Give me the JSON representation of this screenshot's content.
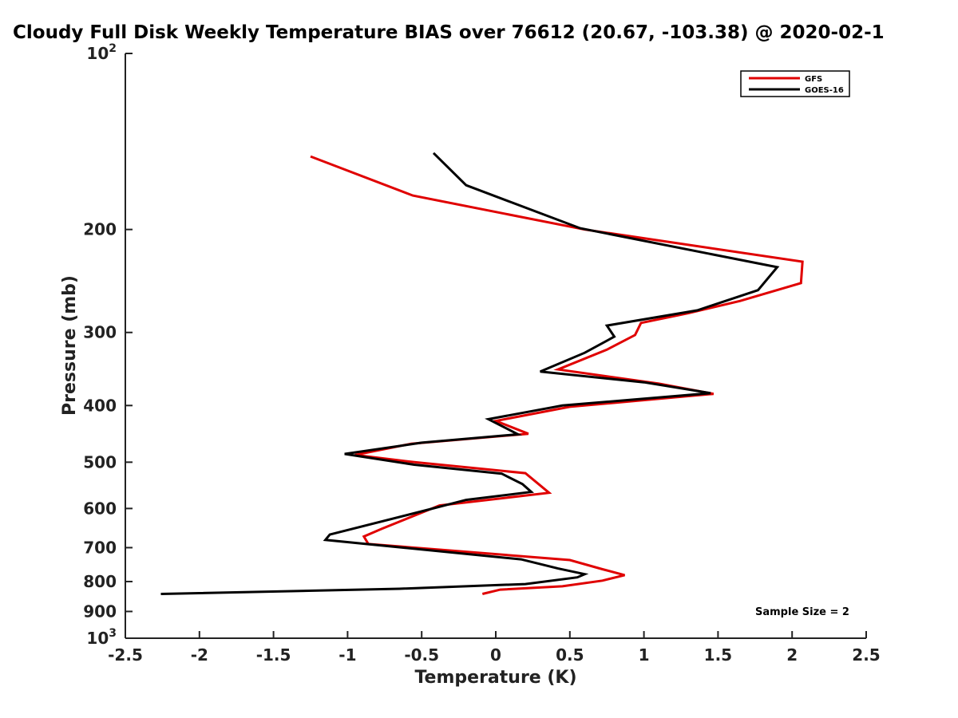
{
  "chart_data": {
    "type": "line",
    "title": "Cloudy Full Disk Weekly Temperature BIAS over 76612 (20.67, -103.38) @ 2020-02-1",
    "xlabel": "Temperature (K)",
    "ylabel": "Pressure (mb)",
    "xlim": [
      -2.5,
      2.5
    ],
    "ylim": [
      100,
      1000
    ],
    "y_scale": "log",
    "y_reversed": true,
    "grid": false,
    "legend_position": "top-right",
    "x_ticks": [
      -2.5,
      -2,
      -1.5,
      -1,
      -0.5,
      0,
      0.5,
      1,
      1.5,
      2,
      2.5
    ],
    "x_tick_labels": [
      "-2.5",
      "-2",
      "-1.5",
      "-1",
      "-0.5",
      "0",
      "0.5",
      "1",
      "1.5",
      "2",
      "2.5"
    ],
    "y_ticks": [
      200,
      300,
      400,
      500,
      600,
      700,
      800,
      900
    ],
    "y_tick_labels": [
      "200",
      "300",
      "400",
      "500",
      "600",
      "700",
      "800",
      "900"
    ],
    "y_decade_labels": [
      {
        "value": 100,
        "base": "10",
        "exp": "2"
      },
      {
        "value": 1000,
        "base": "10",
        "exp": "3"
      }
    ],
    "annotation": "Sample Size = 2",
    "series": [
      {
        "name": "GFS",
        "color": "#e00000",
        "points": [
          [
            -1.25,
            150
          ],
          [
            -0.56,
            175
          ],
          [
            0.6,
            200
          ],
          [
            2.07,
            227
          ],
          [
            2.06,
            247
          ],
          [
            1.65,
            265
          ],
          [
            1.3,
            278
          ],
          [
            0.98,
            289
          ],
          [
            0.94,
            303
          ],
          [
            0.75,
            321
          ],
          [
            0.42,
            347
          ],
          [
            1.1,
            367
          ],
          [
            1.47,
            382
          ],
          [
            0.5,
            402
          ],
          [
            0.0,
            425
          ],
          [
            0.22,
            447
          ],
          [
            -0.57,
            465
          ],
          [
            -0.95,
            486
          ],
          [
            -0.55,
            500
          ],
          [
            0.2,
            522
          ],
          [
            0.36,
            564
          ],
          [
            -0.38,
            593
          ],
          [
            -0.77,
            650
          ],
          [
            -0.89,
            670
          ],
          [
            -0.86,
            690
          ],
          [
            0.5,
            735
          ],
          [
            0.72,
            762
          ],
          [
            0.87,
            780
          ],
          [
            0.72,
            797
          ],
          [
            0.45,
            815
          ],
          [
            0.03,
            826
          ],
          [
            -0.09,
            840
          ]
        ]
      },
      {
        "name": "GOES-16",
        "color": "#000000",
        "points": [
          [
            -0.42,
            148
          ],
          [
            -0.2,
            168
          ],
          [
            0.57,
            199
          ],
          [
            1.9,
            232
          ],
          [
            1.77,
            254
          ],
          [
            1.36,
            275
          ],
          [
            0.75,
            292
          ],
          [
            0.8,
            305
          ],
          [
            0.6,
            325
          ],
          [
            0.3,
            350
          ],
          [
            1.0,
            365
          ],
          [
            1.45,
            381
          ],
          [
            0.45,
            400
          ],
          [
            -0.05,
            422
          ],
          [
            0.15,
            448
          ],
          [
            -0.5,
            463
          ],
          [
            -1.02,
            484
          ],
          [
            -0.55,
            505
          ],
          [
            0.04,
            523
          ],
          [
            0.18,
            545
          ],
          [
            0.24,
            562
          ],
          [
            -0.2,
            580
          ],
          [
            -0.48,
            605
          ],
          [
            -1.12,
            665
          ],
          [
            -1.15,
            679
          ],
          [
            0.17,
            733
          ],
          [
            0.42,
            760
          ],
          [
            0.6,
            777
          ],
          [
            0.55,
            787
          ],
          [
            0.2,
            808
          ],
          [
            -0.65,
            823
          ],
          [
            -2.26,
            840
          ]
        ]
      }
    ]
  }
}
